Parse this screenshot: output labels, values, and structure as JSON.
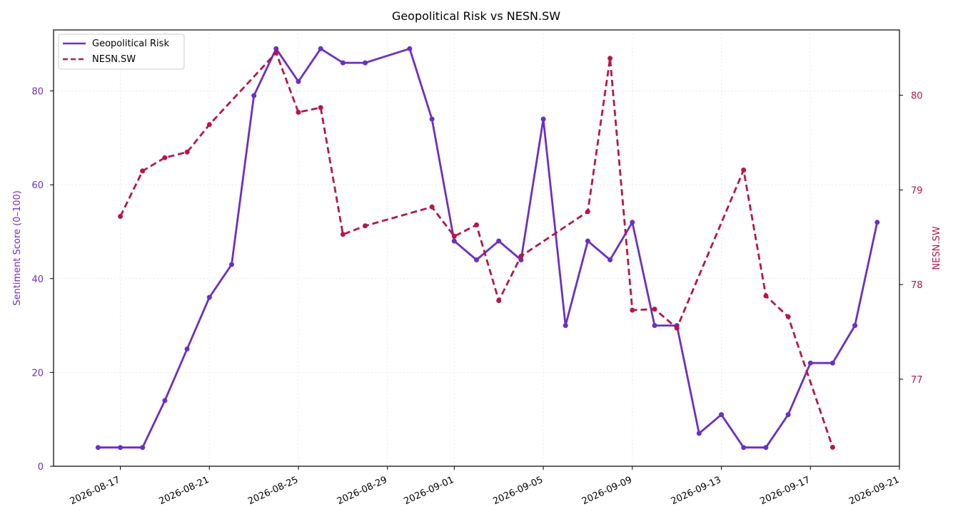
{
  "chart_data": {
    "type": "line",
    "title": "Geopolitical Risk vs NESN.SW",
    "xlabel": "",
    "y_left": {
      "label": "Sentiment Score (0–100)",
      "lim": [
        0,
        93
      ],
      "ticks": [
        0,
        20,
        40,
        60,
        80
      ],
      "color": "#6a2fc4"
    },
    "y_right": {
      "label": "NESN.SW",
      "lim": [
        76.08,
        80.69
      ],
      "ticks": [
        77,
        78,
        79,
        80
      ],
      "color": "#b5174a"
    },
    "x_ticks": [
      "2026-08-17",
      "2026-08-21",
      "2026-08-25",
      "2026-08-29",
      "2026-09-01",
      "2026-09-05",
      "2026-09-09",
      "2026-09-13",
      "2026-09-17",
      "2026-09-21"
    ],
    "x_range": [
      "2026-08-14",
      "2026-09-21"
    ],
    "grid": true,
    "legend": "top-left",
    "series": [
      {
        "name": "Geopolitical Risk",
        "axis": "left",
        "style": "solid",
        "color": "#6a2fc4",
        "points": [
          [
            "2026-08-16",
            4
          ],
          [
            "2026-08-17",
            4
          ],
          [
            "2026-08-18",
            4
          ],
          [
            "2026-08-19",
            14
          ],
          [
            "2026-08-20",
            25
          ],
          [
            "2026-08-21",
            36
          ],
          [
            "2026-08-22",
            43
          ],
          [
            "2026-08-23",
            79
          ],
          [
            "2026-08-24",
            89
          ],
          [
            "2026-08-25",
            82
          ],
          [
            "2026-08-26",
            89
          ],
          [
            "2026-08-27",
            86
          ],
          [
            "2026-08-28",
            86
          ],
          [
            "2026-08-30",
            89
          ],
          [
            "2026-08-31",
            74
          ],
          [
            "2026-09-01",
            48
          ],
          [
            "2026-09-02",
            44
          ],
          [
            "2026-09-03",
            48
          ],
          [
            "2026-09-04",
            44
          ],
          [
            "2026-09-05",
            74
          ],
          [
            "2026-09-06",
            30
          ],
          [
            "2026-09-07",
            48
          ],
          [
            "2026-09-08",
            44
          ],
          [
            "2026-09-09",
            52
          ],
          [
            "2026-09-10",
            30
          ],
          [
            "2026-09-11",
            30
          ],
          [
            "2026-09-12",
            7
          ],
          [
            "2026-09-13",
            11
          ],
          [
            "2026-09-14",
            4
          ],
          [
            "2026-09-15",
            4
          ],
          [
            "2026-09-16",
            11
          ],
          [
            "2026-09-17",
            22
          ],
          [
            "2026-09-18",
            22
          ],
          [
            "2026-09-19",
            30
          ],
          [
            "2026-09-20",
            52
          ]
        ]
      },
      {
        "name": "NESN.SW",
        "axis": "right",
        "style": "dashed",
        "color": "#b5174a",
        "points": [
          [
            "2026-08-17",
            78.72
          ],
          [
            "2026-08-18",
            79.2
          ],
          [
            "2026-08-19",
            79.34
          ],
          [
            "2026-08-20",
            79.4
          ],
          [
            "2026-08-21",
            79.69
          ],
          [
            "2026-08-24",
            80.45
          ],
          [
            "2026-08-25",
            79.82
          ],
          [
            "2026-08-26",
            79.87
          ],
          [
            "2026-08-27",
            78.53
          ],
          [
            "2026-08-28",
            78.62
          ],
          [
            "2026-08-31",
            78.82
          ],
          [
            "2026-09-01",
            78.51
          ],
          [
            "2026-09-02",
            78.63
          ],
          [
            "2026-09-03",
            77.83
          ],
          [
            "2026-09-04",
            78.3
          ],
          [
            "2026-09-07",
            78.77
          ],
          [
            "2026-09-08",
            80.39
          ],
          [
            "2026-09-09",
            77.73
          ],
          [
            "2026-09-10",
            77.74
          ],
          [
            "2026-09-11",
            77.54
          ],
          [
            "2026-09-14",
            79.21
          ],
          [
            "2026-09-15",
            77.88
          ],
          [
            "2026-09-16",
            77.66
          ],
          [
            "2026-09-18",
            76.28
          ]
        ]
      }
    ]
  }
}
